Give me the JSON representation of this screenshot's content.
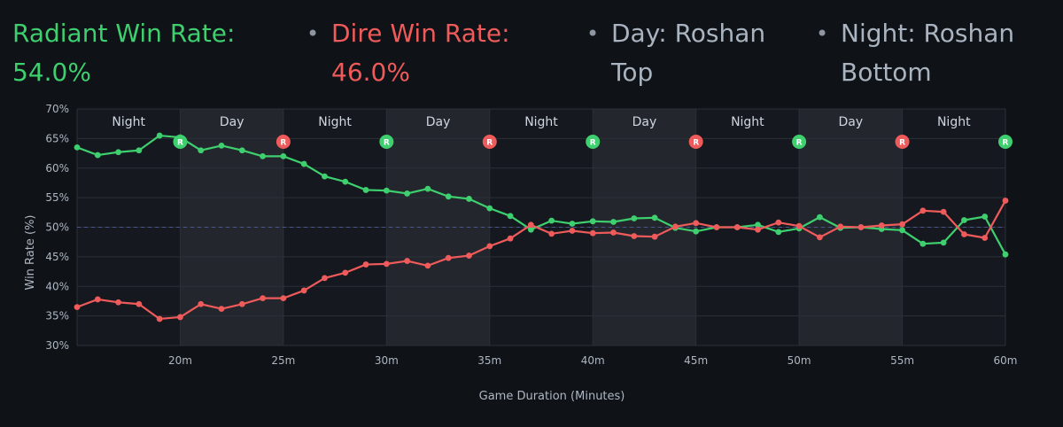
{
  "header": {
    "radiant_label": "Radiant Win Rate:",
    "radiant_value": "54.0%",
    "dire_label": "Dire Win Rate:",
    "dire_value": "46.0%",
    "day_line1": "Day: Roshan",
    "day_line2": "Top",
    "night_line1": "Night: Roshan",
    "night_line2": "Bottom",
    "bullet": "•"
  },
  "colors": {
    "radiant": "#3ecf6e",
    "dire": "#ef5a5a",
    "night_band": "#15191f",
    "day_band": "#23272d",
    "grid": "#2b3038",
    "midline": "#4a5590"
  },
  "chart_data": {
    "type": "line",
    "title": "",
    "xlabel": "Game Duration (Minutes)",
    "ylabel": "Win Rate (%)",
    "xlim": [
      15,
      60
    ],
    "ylim": [
      30,
      70
    ],
    "x_ticks": [
      20,
      25,
      30,
      35,
      40,
      45,
      50,
      55,
      60
    ],
    "x_tick_labels": [
      "20m",
      "25m",
      "30m",
      "35m",
      "40m",
      "45m",
      "50m",
      "55m",
      "60m"
    ],
    "y_ticks": [
      30,
      35,
      40,
      45,
      50,
      55,
      60,
      65,
      70
    ],
    "y_tick_labels": [
      "30%",
      "35%",
      "40%",
      "45%",
      "50%",
      "55%",
      "60%",
      "65%",
      "70%"
    ],
    "reference_line": 50,
    "x": [
      15,
      16,
      17,
      18,
      19,
      20,
      21,
      22,
      23,
      24,
      25,
      26,
      27,
      28,
      29,
      30,
      31,
      32,
      33,
      34,
      35,
      36,
      37,
      38,
      39,
      40,
      41,
      42,
      43,
      44,
      45,
      46,
      47,
      48,
      49,
      50,
      51,
      52,
      53,
      54,
      55,
      56,
      57,
      58,
      59,
      60
    ],
    "series": [
      {
        "name": "Radiant",
        "color": "#3ecf6e",
        "values": [
          63.5,
          62.2,
          62.7,
          63.0,
          65.5,
          65.2,
          63.0,
          63.8,
          63.0,
          62.0,
          62.0,
          60.7,
          58.6,
          57.7,
          56.3,
          56.2,
          55.7,
          56.5,
          55.2,
          54.8,
          53.2,
          51.9,
          49.6,
          51.1,
          50.6,
          51.0,
          50.9,
          51.5,
          51.6,
          49.9,
          49.3,
          50.0,
          50.0,
          50.4,
          49.2,
          49.8,
          51.7,
          49.9,
          50.0,
          49.7,
          49.5,
          47.2,
          47.4,
          51.2,
          51.8,
          45.4
        ]
      },
      {
        "name": "Dire",
        "color": "#ef5a5a",
        "values": [
          36.5,
          37.8,
          37.3,
          37.0,
          34.5,
          34.8,
          37.0,
          36.2,
          37.0,
          38.0,
          38.0,
          39.3,
          41.4,
          42.3,
          43.7,
          43.8,
          44.3,
          43.5,
          44.8,
          45.2,
          46.8,
          48.1,
          50.4,
          48.9,
          49.4,
          49.0,
          49.1,
          48.5,
          48.4,
          50.1,
          50.7,
          50.0,
          50.0,
          49.6,
          50.8,
          50.2,
          48.3,
          50.1,
          50.0,
          50.3,
          50.5,
          52.8,
          52.6,
          48.8,
          48.2,
          54.5
        ]
      }
    ],
    "bands": [
      {
        "label": "Night",
        "start": 15,
        "end": 20
      },
      {
        "label": "Day",
        "start": 20,
        "end": 25
      },
      {
        "label": "Night",
        "start": 25,
        "end": 30
      },
      {
        "label": "Day",
        "start": 30,
        "end": 35
      },
      {
        "label": "Night",
        "start": 35,
        "end": 40
      },
      {
        "label": "Day",
        "start": 40,
        "end": 45
      },
      {
        "label": "Night",
        "start": 45,
        "end": 50
      },
      {
        "label": "Day",
        "start": 50,
        "end": 55
      },
      {
        "label": "Night",
        "start": 55,
        "end": 60
      }
    ],
    "roshan_markers": [
      {
        "x": 20,
        "team": "Radiant",
        "label": "R"
      },
      {
        "x": 25,
        "team": "Dire",
        "label": "R"
      },
      {
        "x": 30,
        "team": "Radiant",
        "label": "R"
      },
      {
        "x": 35,
        "team": "Dire",
        "label": "R"
      },
      {
        "x": 40,
        "team": "Radiant",
        "label": "R"
      },
      {
        "x": 45,
        "team": "Dire",
        "label": "R"
      },
      {
        "x": 50,
        "team": "Radiant",
        "label": "R"
      },
      {
        "x": 55,
        "team": "Dire",
        "label": "R"
      },
      {
        "x": 60,
        "team": "Radiant",
        "label": "R"
      }
    ]
  }
}
